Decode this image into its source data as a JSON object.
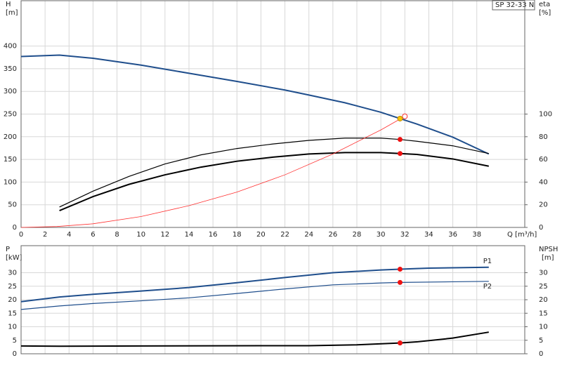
{
  "chart_data": [
    {
      "type": "line",
      "label_model": "SP 32-33 N",
      "ylabel": "H",
      "yunit": "[m]",
      "y2label": "eta",
      "y2unit": "[%]",
      "xlabel": "Q [m³/h]",
      "xlim": [
        0,
        42
      ],
      "xticks": [
        0,
        2,
        4,
        6,
        8,
        10,
        12,
        14,
        16,
        18,
        20,
        22,
        24,
        26,
        28,
        30,
        32,
        34,
        36,
        38
      ],
      "ylim": [
        0,
        500
      ],
      "yticks": [
        0,
        50,
        100,
        150,
        200,
        250,
        300,
        350,
        400
      ],
      "y2lim": [
        0,
        200
      ],
      "y2ticks": [
        0,
        20,
        40,
        60,
        80,
        100
      ],
      "grid": true,
      "series": [
        {
          "color": "#1f4e8c",
          "width": 2,
          "style": "line",
          "x": [
            0,
            3.2,
            6,
            10,
            14,
            18,
            22,
            24,
            27,
            30,
            31.6,
            33,
            36,
            39
          ],
          "values": [
            377,
            380,
            373,
            358,
            340,
            322,
            303,
            292,
            275,
            254,
            240,
            228,
            199,
            162
          ]
        },
        {
          "color": "#000000",
          "width": 1.2,
          "style": "line",
          "axis": "y2",
          "x": [
            3.2,
            6,
            9,
            12,
            15,
            18,
            21,
            24,
            27,
            30,
            31.6,
            33,
            36,
            39
          ],
          "values": [
            18,
            32,
            45,
            56,
            64,
            69.6,
            73.6,
            76.8,
            78.8,
            78.8,
            77.6,
            76,
            72,
            65.2
          ]
        },
        {
          "color": "#000000",
          "width": 2,
          "style": "line",
          "axis": "y2",
          "x": [
            3.2,
            6,
            9,
            12,
            15,
            18,
            21,
            24,
            27,
            30,
            31.6,
            33,
            36,
            39
          ],
          "values": [
            14.8,
            27.2,
            38,
            46.4,
            53.2,
            58.4,
            62,
            64.8,
            66,
            66,
            65.2,
            64.4,
            60.4,
            54
          ]
        },
        {
          "color": "#ff3030",
          "width": 0.8,
          "style": "line",
          "x": [
            0,
            3,
            6,
            10,
            14,
            18,
            22,
            26,
            30,
            32
          ],
          "values": [
            0,
            2,
            8,
            24,
            48,
            78,
            116,
            162,
            215,
            245
          ]
        },
        {
          "color": "#ff3030",
          "style": "ring",
          "x": [
            32
          ],
          "values": [
            245
          ]
        },
        {
          "color": "#f5c400",
          "style": "dot",
          "x": [
            31.6
          ],
          "values": [
            240
          ]
        },
        {
          "color": "#ee1111",
          "style": "dot",
          "axis": "y2",
          "x": [
            31.6,
            31.6
          ],
          "values": [
            77.6,
            65.2
          ]
        }
      ]
    },
    {
      "type": "line",
      "ylabel": "P",
      "yunit": "[kW]",
      "y2label": "NPSH",
      "y2unit": "[m]",
      "xlim": [
        0,
        42
      ],
      "xticks": [
        0,
        2,
        4,
        6,
        8,
        10,
        12,
        14,
        16,
        18,
        20,
        22,
        24,
        26,
        28,
        30,
        32,
        34,
        36,
        38
      ],
      "ylim": [
        0,
        40
      ],
      "yticks": [
        0,
        5,
        10,
        15,
        20,
        25,
        30
      ],
      "y2lim": [
        0,
        40
      ],
      "y2ticks": [
        0,
        5,
        10,
        15,
        20,
        25,
        30
      ],
      "grid": true,
      "series": [
        {
          "name": "P1",
          "color": "#1f4e8c",
          "width": 2,
          "style": "line",
          "x": [
            0,
            3.2,
            6,
            10,
            14,
            18,
            22,
            26,
            30,
            31.6,
            34,
            39
          ],
          "values": [
            19.3,
            21,
            22,
            23.2,
            24.5,
            26.3,
            28.2,
            30,
            31,
            31.3,
            31.7,
            32
          ]
        },
        {
          "name": "P2",
          "color": "#1f4e8c",
          "width": 1.2,
          "style": "line",
          "x": [
            0,
            3.2,
            6,
            10,
            14,
            18,
            22,
            26,
            30,
            31.6,
            39
          ],
          "values": [
            16.4,
            17.7,
            18.6,
            19.6,
            20.7,
            22.3,
            24,
            25.5,
            26.2,
            26.4,
            26.8
          ]
        },
        {
          "color": "#000000",
          "width": 2,
          "style": "line",
          "axis": "y2",
          "x": [
            0,
            3.2,
            10,
            20,
            24,
            28,
            31.6,
            33,
            36,
            39
          ],
          "values": [
            2.9,
            2.8,
            2.9,
            3,
            3,
            3.3,
            4,
            4.4,
            5.8,
            8
          ]
        },
        {
          "color": "#ee1111",
          "style": "dot",
          "x": [
            31.6,
            31.6
          ],
          "values": [
            31.3,
            26.4
          ]
        },
        {
          "color": "#ee1111",
          "style": "dot",
          "axis": "y2",
          "x": [
            31.6
          ],
          "values": [
            4
          ]
        }
      ]
    }
  ]
}
